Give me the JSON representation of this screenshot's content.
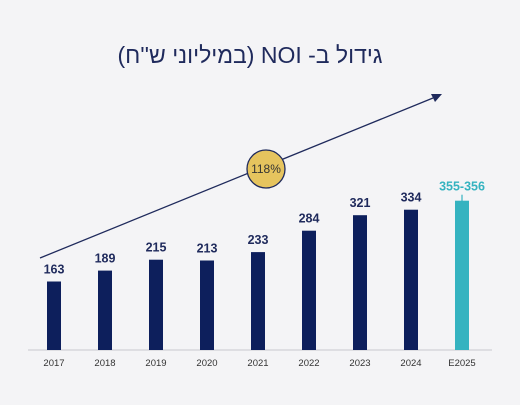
{
  "chart_data": {
    "type": "bar",
    "title": "גידול ב- NOI (במיליוני ש''ח)",
    "categories": [
      "2017",
      "2018",
      "2019",
      "2020",
      "2021",
      "2022",
      "2023",
      "2024",
      "E2025"
    ],
    "values": [
      163,
      189,
      215,
      213,
      233,
      284,
      321,
      334,
      355.5
    ],
    "value_labels": [
      "163",
      "189",
      "215",
      "213",
      "233",
      "284",
      "321",
      "334",
      "355-356"
    ],
    "ylim": [
      0,
      400
    ],
    "grid": false,
    "growth_annotation": "118%"
  },
  "colors": {
    "background": "#f4f4f6",
    "bar": "#0d1f5c",
    "estimate_bar": "#35b3c0",
    "title": "#1f2a5c",
    "value_label": "#1f2a5c",
    "estimate_label": "#35b3c0",
    "arrow": "#1f2a5c",
    "badge_fill": "#e6c45e",
    "badge_stroke": "#1f2a5c"
  }
}
